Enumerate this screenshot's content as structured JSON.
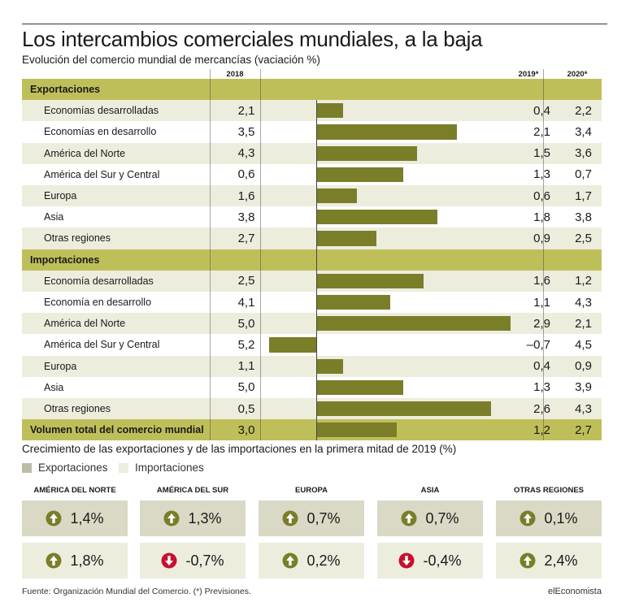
{
  "title": "Los intercambios comerciales mundiales, a la baja",
  "subtitle": "Evolución del comercio mundial de mercancías (vaciación %)",
  "columns": {
    "c2018": "2018",
    "c2019": "2019*",
    "c2020": "2020*"
  },
  "colors": {
    "section_band": "#bfbf5a",
    "row_light": "#ededde",
    "bar": "#7a7e29",
    "card_exports": "#d9d9c6",
    "card_imports": "#ededde",
    "up": "#7a7e29",
    "down": "#c8102e"
  },
  "chart_data": {
    "type": "bar",
    "orientation": "horizontal",
    "xlim": [
      -0.7,
      2.9
    ],
    "sections": [
      {
        "label": "Exportaciones",
        "rows": [
          {
            "name": "Economías desarrolladas",
            "v2018": "2,1",
            "v2019": 0.4,
            "v2019_label": "0,4",
            "v2020": "2,2"
          },
          {
            "name": "Economías en desarrollo",
            "v2018": "3,5",
            "v2019": 2.1,
            "v2019_label": "2,1",
            "v2020": "3,4"
          },
          {
            "name": "América del Norte",
            "v2018": "4,3",
            "v2019": 1.5,
            "v2019_label": "1,5",
            "v2020": "3,6"
          },
          {
            "name": "América del Sur y Central",
            "v2018": "0,6",
            "v2019": 1.3,
            "v2019_label": "1,3",
            "v2020": "0,7"
          },
          {
            "name": "Europa",
            "v2018": "1,6",
            "v2019": 0.6,
            "v2019_label": "0,6",
            "v2020": "1,7"
          },
          {
            "name": "Asia",
            "v2018": "3,8",
            "v2019": 1.8,
            "v2019_label": "1,8",
            "v2020": "3,8"
          },
          {
            "name": "Otras regiones",
            "v2018": "2,7",
            "v2019": 0.9,
            "v2019_label": "0,9",
            "v2020": "2,5"
          }
        ]
      },
      {
        "label": "Importaciones",
        "rows": [
          {
            "name": "Economía desarrolladas",
            "v2018": "2,5",
            "v2019": 1.6,
            "v2019_label": "1,6",
            "v2020": "1,2"
          },
          {
            "name": "Economía en desarrollo",
            "v2018": "4,1",
            "v2019": 1.1,
            "v2019_label": "1,1",
            "v2020": "4,3"
          },
          {
            "name": "América del Norte",
            "v2018": "5,0",
            "v2019": 2.9,
            "v2019_label": "2,9",
            "v2020": "2,1"
          },
          {
            "name": "América del Sur y Central",
            "v2018": "5,2",
            "v2019": -0.7,
            "v2019_label": "–0,7",
            "v2020": "4,5"
          },
          {
            "name": "Europa",
            "v2018": "1,1",
            "v2019": 0.4,
            "v2019_label": "0,4",
            "v2020": "0,9"
          },
          {
            "name": "Asia",
            "v2018": "5,0",
            "v2019": 1.3,
            "v2019_label": "1,3",
            "v2020": "3,9"
          },
          {
            "name": "Otras regiones",
            "v2018": "0,5",
            "v2019": 2.6,
            "v2019_label": "2,6",
            "v2020": "4,3"
          }
        ]
      }
    ],
    "total": {
      "name": "Volumen total del comercio mundial",
      "v2018": "3,0",
      "v2019": 1.2,
      "v2019_label": "1,2",
      "v2020": "2,7"
    }
  },
  "growth": {
    "title": "Crecimiento de las exportaciones y de las importaciones en la primera mitad de 2019 (%)",
    "legend": {
      "exports": "Exportaciones",
      "imports": "Importaciones"
    },
    "regions": [
      {
        "name": "AMÉRICA DEL NORTE",
        "exports": {
          "value": "1,4%",
          "dir": "up"
        },
        "imports": {
          "value": "1,8%",
          "dir": "up"
        }
      },
      {
        "name": "AMÉRICA DEL SUR",
        "exports": {
          "value": "1,3%",
          "dir": "up"
        },
        "imports": {
          "value": "-0,7%",
          "dir": "down"
        }
      },
      {
        "name": "EUROPA",
        "exports": {
          "value": "0,7%",
          "dir": "up"
        },
        "imports": {
          "value": "0,2%",
          "dir": "up"
        }
      },
      {
        "name": "ASIA",
        "exports": {
          "value": "0,7%",
          "dir": "up"
        },
        "imports": {
          "value": "-0,4%",
          "dir": "down"
        }
      },
      {
        "name": "OTRAS REGIONES",
        "exports": {
          "value": "0,1%",
          "dir": "up"
        },
        "imports": {
          "value": "2,4%",
          "dir": "up"
        }
      }
    ]
  },
  "footer": {
    "source": "Fuente: Organización Mundial del Comercio. (*) Previsiones.",
    "brand": "elEconomista"
  }
}
